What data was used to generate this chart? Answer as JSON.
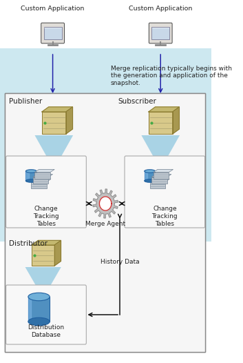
{
  "bg_color": "#ffffff",
  "top_bg_color": "#cde8f0",
  "main_box_border": "#888888",
  "custom_app_left": "Custom Application",
  "custom_app_right": "Custom Application",
  "annotation_text": "Merge replication typically begins with\nthe generation and application of the\nsnapshot.",
  "publisher_label": "Publisher",
  "subscriber_label": "Subscriber",
  "distributor_label": "Distributor",
  "change_tracking_left": "Change\nTracking\nTables",
  "change_tracking_right": "Change\nTracking\nTables",
  "merge_agent_label": "Merge Agent",
  "history_data_label": "History Data",
  "dist_db_label": "Distribution\nDatabase",
  "arrow_color": "#2222aa",
  "inner_arrow_color": "#111111",
  "server_face": "#d8c98a",
  "server_top": "#c4b870",
  "server_side": "#a89850",
  "server_border": "#8a7a30",
  "db_body": "#5090c0",
  "db_top": "#70b0d8",
  "db_border": "#2060a0",
  "gear_color": "#c0c0c0",
  "gear_border": "#909090",
  "gear_hole_border": "#cc3333",
  "box_bg": "#f8f8f8",
  "box_border": "#aaaaaa",
  "triangle_color": "#90c8e0",
  "monitor_screen": "#c8d8e8",
  "monitor_border": "#444444",
  "monitor_body": "#d8d8d8",
  "text_color": "#222222"
}
